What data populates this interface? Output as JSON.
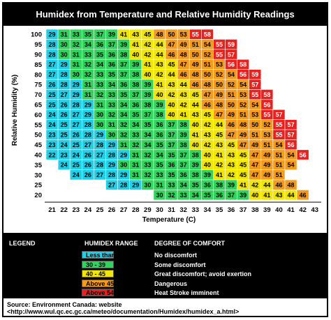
{
  "title": "Humidex from Temperature and Relative Humidity Readings",
  "chart_data": {
    "type": "heatmap",
    "xlabel": "Temperature (C)",
    "ylabel": "Relative Humidity (%)",
    "x": [
      21,
      22,
      23,
      24,
      25,
      26,
      27,
      28,
      29,
      30,
      31,
      32,
      33,
      34,
      35,
      36,
      37,
      38,
      39,
      40,
      41,
      42,
      43
    ],
    "y": [
      100,
      95,
      90,
      85,
      80,
      75,
      70,
      65,
      60,
      55,
      50,
      45,
      40,
      35,
      30,
      25,
      20
    ],
    "rows": [
      {
        "rh": 100,
        "start": 21,
        "values": [
          29,
          31,
          33,
          35,
          37,
          39,
          41,
          43,
          45,
          48,
          50,
          53,
          55,
          58
        ]
      },
      {
        "rh": 95,
        "start": 21,
        "values": [
          28,
          30,
          32,
          34,
          36,
          37,
          39,
          41,
          42,
          44,
          47,
          49,
          51,
          54,
          55,
          59
        ]
      },
      {
        "rh": 90,
        "start": 21,
        "values": [
          28,
          30,
          31,
          33,
          35,
          36,
          38,
          40,
          42,
          44,
          46,
          48,
          50,
          52,
          55,
          57
        ]
      },
      {
        "rh": 85,
        "start": 21,
        "values": [
          27,
          29,
          31,
          32,
          34,
          36,
          37,
          39,
          41,
          43,
          45,
          47,
          49,
          51,
          53,
          56,
          58
        ]
      },
      {
        "rh": 80,
        "start": 21,
        "values": [
          27,
          28,
          30,
          32,
          33,
          35,
          37,
          38,
          40,
          42,
          44,
          46,
          48,
          50,
          52,
          54,
          56,
          59
        ]
      },
      {
        "rh": 75,
        "start": 21,
        "values": [
          26,
          28,
          29,
          31,
          33,
          34,
          36,
          38,
          39,
          41,
          43,
          44,
          46,
          48,
          50,
          52,
          54,
          57
        ]
      },
      {
        "rh": 70,
        "start": 21,
        "values": [
          25,
          27,
          29,
          31,
          32,
          33,
          35,
          37,
          39,
          40,
          42,
          43,
          45,
          47,
          49,
          51,
          53,
          55,
          58
        ]
      },
      {
        "rh": 65,
        "start": 21,
        "values": [
          25,
          26,
          28,
          29,
          31,
          33,
          34,
          36,
          38,
          39,
          40,
          42,
          44,
          46,
          48,
          50,
          52,
          54,
          56
        ]
      },
      {
        "rh": 60,
        "start": 21,
        "values": [
          24,
          26,
          27,
          29,
          30,
          32,
          34,
          35,
          37,
          38,
          40,
          41,
          43,
          45,
          47,
          49,
          51,
          53,
          55,
          57
        ]
      },
      {
        "rh": 55,
        "start": 21,
        "values": [
          24,
          25,
          27,
          28,
          30,
          31,
          32,
          34,
          35,
          36,
          37,
          38,
          40,
          42,
          44,
          46,
          48,
          50,
          52,
          55,
          57
        ]
      },
      {
        "rh": 50,
        "start": 21,
        "values": [
          23,
          25,
          26,
          28,
          29,
          30,
          32,
          33,
          34,
          36,
          37,
          39,
          41,
          43,
          45,
          47,
          49,
          51,
          53,
          55,
          57
        ]
      },
      {
        "rh": 45,
        "start": 21,
        "values": [
          23,
          24,
          25,
          27,
          28,
          29,
          31,
          32,
          34,
          35,
          37,
          38,
          40,
          42,
          43,
          45,
          47,
          49,
          51,
          54,
          56
        ]
      },
      {
        "rh": 40,
        "start": 21,
        "values": [
          22,
          23,
          24,
          26,
          27,
          28,
          29,
          31,
          32,
          34,
          35,
          37,
          38,
          40,
          41,
          43,
          45,
          47,
          49,
          51,
          54,
          56
        ]
      },
      {
        "rh": 35,
        "start": 22,
        "values": [
          24,
          25,
          26,
          28,
          29,
          30,
          31,
          33,
          35,
          36,
          37,
          39,
          40,
          42,
          43,
          45,
          47,
          49,
          51,
          54
        ]
      },
      {
        "rh": 30,
        "start": 23,
        "values": [
          24,
          26,
          27,
          28,
          29,
          31,
          32,
          33,
          35,
          36,
          38,
          39,
          41,
          42,
          45,
          47,
          49,
          51
        ]
      },
      {
        "rh": 25,
        "start": 26,
        "values": [
          27,
          28,
          29,
          30,
          31,
          33,
          34,
          35,
          36,
          38,
          39,
          41,
          42,
          44,
          46,
          48
        ]
      },
      {
        "rh": 20,
        "start": 30,
        "values": [
          30,
          32,
          33,
          34,
          35,
          36,
          37,
          39,
          40,
          41,
          43,
          44,
          46
        ]
      }
    ],
    "ranges": [
      {
        "label": "Less than 29",
        "comfort": "No discomfort",
        "color": "#1ecfe8"
      },
      {
        "label": "30 - 39",
        "comfort": "Some discomfort",
        "color": "#2fd45a"
      },
      {
        "label": "40 - 45",
        "comfort": "Great discomfort; avoid exertion",
        "color": "#f2e600"
      },
      {
        "label": "Above 45",
        "comfort": "Dangerous",
        "color": "#f59a1a"
      },
      {
        "label": "Above 54",
        "comfort": "Heat Stroke imminent",
        "color": "#e8201e"
      }
    ]
  },
  "legend": {
    "heading": "LEGEND",
    "range_heading": "HUMIDEX RANGE",
    "comfort_heading": "DEGREE OF COMFORT"
  },
  "source_text": "Source: Environment Canada: website   <http://www.wul.qc.ec.gc.ca/meteo/documentation/Humidex/humidex_a.html>"
}
